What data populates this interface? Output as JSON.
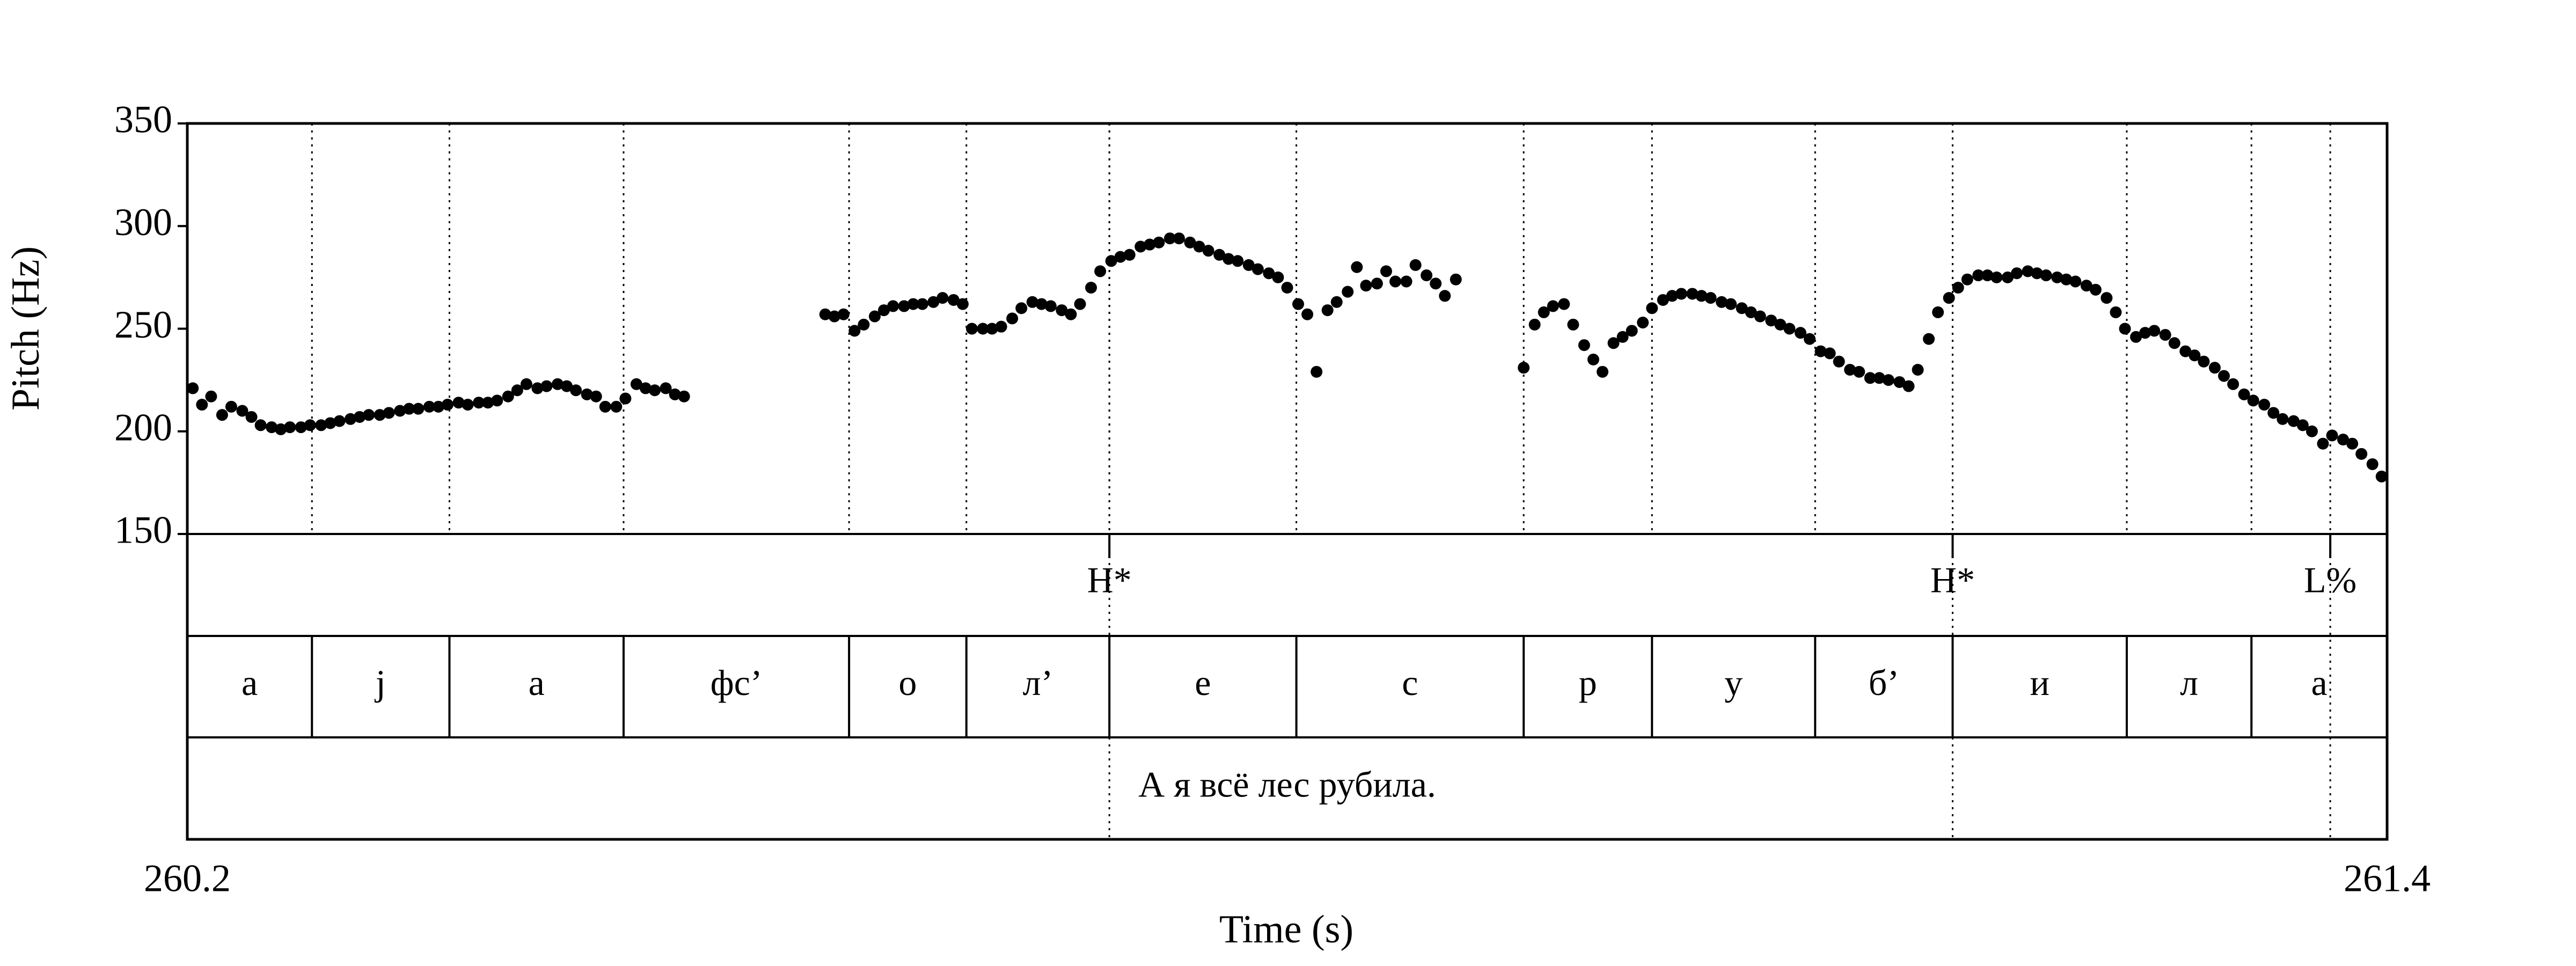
{
  "chart_data": {
    "type": "scatter",
    "xlabel": "Time (s)",
    "ylabel": "Pitch (Hz)",
    "xlim": [
      260.2,
      261.4
    ],
    "ylim": [
      150,
      350
    ],
    "xticks": [
      260.2,
      261.4
    ],
    "yticks": [
      150,
      200,
      250,
      300,
      350
    ],
    "color": "#000000",
    "x": [
      260.203,
      260.208,
      260.213,
      260.219,
      260.224,
      260.23,
      260.235,
      260.24,
      260.246,
      260.251,
      260.256,
      260.262,
      260.267,
      260.273,
      260.278,
      260.283,
      260.289,
      260.294,
      260.299,
      260.305,
      260.31,
      260.316,
      260.321,
      260.326,
      260.332,
      260.337,
      260.342,
      260.348,
      260.353,
      260.359,
      260.364,
      260.369,
      260.375,
      260.38,
      260.385,
      260.391,
      260.396,
      260.402,
      260.407,
      260.412,
      260.418,
      260.423,
      260.428,
      260.434,
      260.439,
      260.445,
      260.45,
      260.455,
      260.461,
      260.466,
      260.471,
      260.548,
      260.553,
      260.558,
      260.564,
      260.569,
      260.575,
      260.58,
      260.585,
      260.591,
      260.596,
      260.601,
      260.607,
      260.612,
      260.618,
      260.623,
      260.628,
      260.634,
      260.639,
      260.644,
      260.65,
      260.655,
      260.661,
      260.666,
      260.671,
      260.677,
      260.682,
      260.687,
      260.693,
      260.698,
      260.704,
      260.709,
      260.714,
      260.72,
      260.725,
      260.73,
      260.736,
      260.741,
      260.747,
      260.752,
      260.757,
      260.763,
      260.768,
      260.773,
      260.779,
      260.784,
      260.79,
      260.795,
      260.8,
      260.806,
      260.811,
      260.816,
      260.822,
      260.827,
      260.833,
      260.838,
      260.843,
      260.849,
      260.854,
      260.859,
      260.865,
      260.87,
      260.876,
      260.881,
      260.886,
      260.892,
      260.929,
      260.935,
      260.94,
      260.945,
      260.951,
      260.956,
      260.962,
      260.967,
      260.972,
      260.978,
      260.983,
      260.988,
      260.994,
      260.999,
      261.005,
      261.01,
      261.015,
      261.021,
      261.026,
      261.031,
      261.037,
      261.042,
      261.048,
      261.053,
      261.058,
      261.064,
      261.069,
      261.074,
      261.08,
      261.085,
      261.091,
      261.096,
      261.101,
      261.107,
      261.112,
      261.118,
      261.123,
      261.128,
      261.134,
      261.139,
      261.144,
      261.15,
      261.155,
      261.161,
      261.166,
      261.171,
      261.177,
      261.182,
      261.187,
      261.193,
      261.198,
      261.204,
      261.209,
      261.214,
      261.22,
      261.225,
      261.23,
      261.236,
      261.241,
      261.247,
      261.252,
      261.257,
      261.263,
      261.268,
      261.273,
      261.279,
      261.284,
      261.29,
      261.295,
      261.3,
      261.306,
      261.311,
      261.316,
      261.322,
      261.327,
      261.333,
      261.338,
      261.343,
      261.349,
      261.354,
      261.359,
      261.365,
      261.37,
      261.376,
      261.381,
      261.386,
      261.392,
      261.397
    ],
    "values": [
      221,
      213,
      217,
      208,
      212,
      210,
      207,
      203,
      202,
      201,
      202,
      202,
      203,
      203,
      204,
      205,
      206,
      207,
      208,
      208,
      209,
      210,
      211,
      211,
      212,
      212,
      213,
      214,
      213,
      214,
      214,
      215,
      217,
      220,
      223,
      221,
      222,
      223,
      222,
      220,
      218,
      217,
      212,
      212,
      216,
      223,
      221,
      220,
      221,
      218,
      217,
      257,
      256,
      257,
      249,
      252,
      256,
      259,
      261,
      261,
      262,
      262,
      263,
      265,
      264,
      262,
      250,
      250,
      250,
      251,
      255,
      260,
      263,
      262,
      261,
      259,
      257,
      262,
      270,
      278,
      283,
      285,
      286,
      290,
      291,
      292,
      294,
      294,
      292,
      290,
      288,
      286,
      284,
      283,
      281,
      279,
      277,
      275,
      270,
      262,
      257,
      229,
      259,
      263,
      268,
      280,
      271,
      272,
      278,
      273,
      273,
      281,
      276,
      272,
      266,
      274,
      231,
      252,
      258,
      261,
      262,
      252,
      242,
      235,
      229,
      243,
      246,
      249,
      253,
      260,
      264,
      266,
      267,
      267,
      266,
      265,
      263,
      262,
      260,
      258,
      256,
      254,
      252,
      250,
      248,
      245,
      239,
      238,
      234,
      230,
      229,
      226,
      226,
      225,
      224,
      222,
      230,
      245,
      258,
      265,
      270,
      274,
      276,
      276,
      275,
      275,
      277,
      278,
      277,
      276,
      275,
      274,
      273,
      271,
      269,
      265,
      258,
      250,
      246,
      248,
      249,
      247,
      243,
      239,
      237,
      234,
      231,
      227,
      223,
      218,
      215,
      213,
      209,
      206,
      205,
      203,
      200,
      194,
      198,
      196,
      194,
      189,
      184,
      178
    ],
    "point_tier": {
      "times": [
        260.703,
        261.163,
        261.369
      ],
      "labels": [
        "H*",
        "H*",
        "L%"
      ]
    },
    "interval_tier": {
      "boundaries": [
        260.268,
        260.343,
        260.438,
        260.561,
        260.625,
        260.703,
        260.805,
        260.929,
        260.999,
        261.088,
        261.163,
        261.258,
        261.326
      ],
      "labels": [
        "а",
        "j",
        "а",
        "фс’",
        "о",
        "л’",
        "е",
        "с",
        "р",
        "у",
        "б’",
        "и",
        "л",
        "а"
      ]
    },
    "sentence_tier": {
      "labels": [
        "А я всё лес рубила."
      ]
    }
  }
}
